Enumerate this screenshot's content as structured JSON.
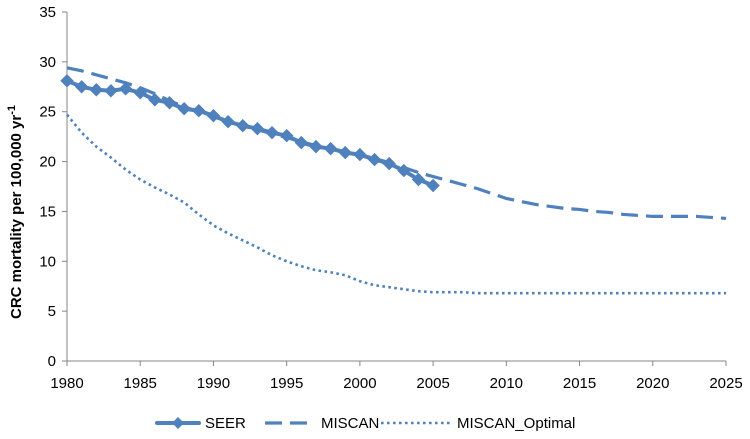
{
  "chart_data": {
    "type": "line",
    "title": "",
    "xlabel": "",
    "ylabel": "CRC mortality per 100,000 yr",
    "ylabel_superscript": "-1",
    "xlim": [
      1980,
      2025
    ],
    "ylim": [
      0,
      35
    ],
    "x_ticks": [
      1980,
      1985,
      1990,
      1995,
      2000,
      2005,
      2010,
      2015,
      2020,
      2025
    ],
    "y_ticks": [
      0,
      5,
      10,
      15,
      20,
      25,
      30,
      35
    ],
    "grid": false,
    "legend_position": "bottom",
    "series": [
      {
        "name": "SEER",
        "style": "solid-diamond",
        "color": "#4f81bd",
        "x": [
          1980,
          1981,
          1982,
          1983,
          1984,
          1985,
          1986,
          1987,
          1988,
          1989,
          1990,
          1991,
          1992,
          1993,
          1994,
          1995,
          1996,
          1997,
          1998,
          1999,
          2000,
          2001,
          2002,
          2003,
          2004,
          2005
        ],
        "values": [
          28.1,
          27.5,
          27.2,
          27.1,
          27.3,
          26.9,
          26.2,
          25.9,
          25.3,
          25.1,
          24.6,
          24.0,
          23.6,
          23.3,
          22.9,
          22.6,
          21.9,
          21.5,
          21.3,
          20.9,
          20.7,
          20.2,
          19.8,
          19.1,
          18.2,
          17.6
        ]
      },
      {
        "name": "MISCAN",
        "style": "dashed",
        "color": "#4f81bd",
        "x": [
          1980,
          1981,
          1982,
          1983,
          1984,
          1985,
          1986,
          1987,
          1988,
          1989,
          1990,
          1991,
          1992,
          1993,
          1994,
          1995,
          1996,
          1997,
          1998,
          1999,
          2000,
          2001,
          2002,
          2003,
          2004,
          2005,
          2006,
          2007,
          2008,
          2009,
          2010,
          2011,
          2012,
          2013,
          2014,
          2015,
          2016,
          2017,
          2018,
          2019,
          2020,
          2021,
          2022,
          2023,
          2024,
          2025
        ],
        "values": [
          29.4,
          29.1,
          28.7,
          28.3,
          27.9,
          27.4,
          26.8,
          26.1,
          25.5,
          25.0,
          24.5,
          24.0,
          23.6,
          23.2,
          22.8,
          22.4,
          22.0,
          21.6,
          21.3,
          21.0,
          20.7,
          20.3,
          19.9,
          19.4,
          18.9,
          18.5,
          18.1,
          17.7,
          17.3,
          16.8,
          16.3,
          16.0,
          15.7,
          15.5,
          15.3,
          15.2,
          15.0,
          14.9,
          14.7,
          14.6,
          14.5,
          14.5,
          14.5,
          14.5,
          14.4,
          14.3
        ]
      },
      {
        "name": "MISCAN_Optimal",
        "style": "dotted",
        "color": "#4f81bd",
        "x": [
          1980,
          1981,
          1982,
          1983,
          1984,
          1985,
          1986,
          1987,
          1988,
          1989,
          1990,
          1991,
          1992,
          1993,
          1994,
          1995,
          1996,
          1997,
          1998,
          1999,
          2000,
          2001,
          2002,
          2003,
          2004,
          2005,
          2006,
          2007,
          2008,
          2009,
          2010,
          2011,
          2012,
          2013,
          2014,
          2015,
          2016,
          2017,
          2018,
          2019,
          2020,
          2021,
          2022,
          2023,
          2024,
          2025
        ],
        "values": [
          24.7,
          22.9,
          21.5,
          20.4,
          19.2,
          18.2,
          17.4,
          16.7,
          15.9,
          14.7,
          13.6,
          12.8,
          12.1,
          11.4,
          10.6,
          10.0,
          9.5,
          9.1,
          8.9,
          8.6,
          8.0,
          7.6,
          7.4,
          7.2,
          7.0,
          6.9,
          6.9,
          6.9,
          6.8,
          6.8,
          6.8,
          6.8,
          6.8,
          6.8,
          6.8,
          6.8,
          6.8,
          6.8,
          6.8,
          6.8,
          6.8,
          6.8,
          6.8,
          6.8,
          6.8,
          6.8
        ]
      }
    ]
  }
}
